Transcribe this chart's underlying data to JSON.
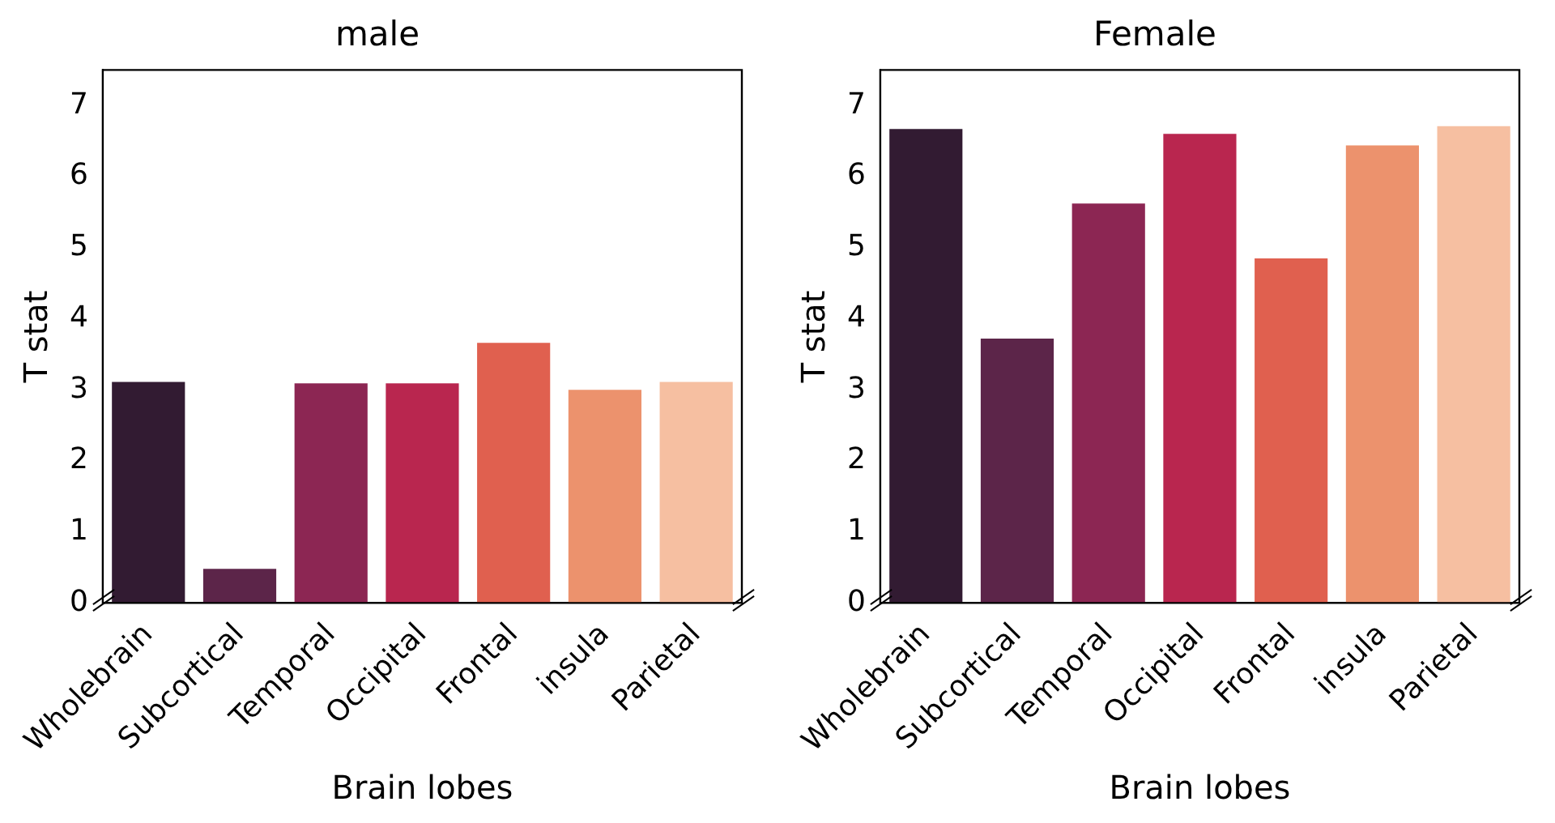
{
  "chart_data": [
    {
      "type": "bar",
      "title": "male",
      "xlabel": "Brain lobes",
      "ylabel": "T stat",
      "categories": [
        "Wholebrain",
        "Subcortical",
        "Temporal",
        "Occipital",
        "Frontal",
        "insula",
        "Parietal"
      ],
      "values": [
        3.11,
        0.48,
        3.09,
        3.09,
        3.66,
        3.0,
        3.11
      ],
      "colors": [
        "#321b32",
        "#5c2549",
        "#8c2653",
        "#b9264f",
        "#e0604f",
        "#ec926d",
        "#f6bfa1"
      ],
      "ylim": [
        0,
        7.5
      ],
      "yticks": [
        0,
        1,
        2,
        3,
        4,
        5,
        6,
        7
      ],
      "grid": false,
      "legend": false
    },
    {
      "type": "bar",
      "title": "Female",
      "xlabel": "Brain lobes",
      "ylabel": "T stat",
      "categories": [
        "Wholebrain",
        "Subcortical",
        "Temporal",
        "Occipital",
        "Frontal",
        "insula",
        "Parietal"
      ],
      "values": [
        6.67,
        3.72,
        5.62,
        6.6,
        4.85,
        6.44,
        6.71
      ],
      "colors": [
        "#321b32",
        "#5c2549",
        "#8c2653",
        "#b9264f",
        "#e0604f",
        "#ec926d",
        "#f6bfa1"
      ],
      "ylim": [
        0,
        7.5
      ],
      "yticks": [
        0,
        1,
        2,
        3,
        4,
        5,
        6,
        7
      ],
      "grid": false,
      "legend": false
    }
  ]
}
